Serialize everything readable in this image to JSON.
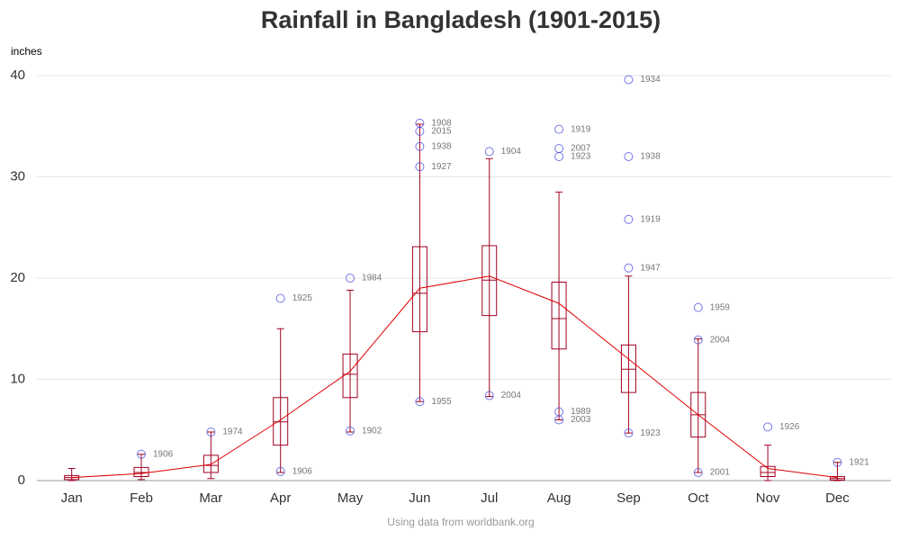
{
  "chart_data": {
    "type": "box",
    "title": "Rainfall in Bangladesh (1901-2015)",
    "y_label": "inches",
    "footnote": "Using data from worldbank.org",
    "categories": [
      "Jan",
      "Feb",
      "Mar",
      "Apr",
      "May",
      "Jun",
      "Jul",
      "Aug",
      "Sep",
      "Oct",
      "Nov",
      "Dec"
    ],
    "ylim": [
      0,
      40
    ],
    "yticks": [
      0,
      10,
      20,
      30,
      40
    ],
    "grid": true,
    "box_color": "#a00020",
    "point_color": "#3a3ae0",
    "line_color": "#e00000",
    "boxes": [
      {
        "min": 0,
        "q1": 0.1,
        "median": 0.3,
        "q3": 0.5,
        "max": 1.2
      },
      {
        "min": 0.1,
        "q1": 0.4,
        "median": 0.8,
        "q3": 1.3,
        "max": 2.6
      },
      {
        "min": 0.2,
        "q1": 0.8,
        "median": 1.5,
        "q3": 2.5,
        "max": 4.8
      },
      {
        "min": 0.8,
        "q1": 3.5,
        "median": 5.8,
        "q3": 8.2,
        "max": 15
      },
      {
        "min": 4.8,
        "q1": 8.2,
        "median": 10.5,
        "q3": 12.5,
        "max": 18.8
      },
      {
        "min": 7.8,
        "q1": 14.7,
        "median": 18.5,
        "q3": 23.1,
        "max": 35.2
      },
      {
        "min": 8.3,
        "q1": 16.3,
        "median": 19.8,
        "q3": 23.2,
        "max": 31.8
      },
      {
        "min": 6,
        "q1": 13,
        "median": 16,
        "q3": 19.6,
        "max": 28.5
      },
      {
        "min": 4.7,
        "q1": 8.7,
        "median": 11,
        "q3": 13.4,
        "max": 20.2
      },
      {
        "min": 0.8,
        "q1": 4.3,
        "median": 6.5,
        "q3": 8.7,
        "max": 14
      },
      {
        "min": 0,
        "q1": 0.4,
        "median": 0.8,
        "q3": 1.4,
        "max": 3.5
      },
      {
        "min": 0,
        "q1": 0.05,
        "median": 0.2,
        "q3": 0.4,
        "max": 1.8
      }
    ],
    "means": [
      0.3,
      0.7,
      1.6,
      6,
      10.8,
      19,
      20.2,
      17.5,
      12,
      6.5,
      1.2,
      0.3
    ],
    "points": [
      {
        "category": "Feb",
        "value": 2.6,
        "label": "1906"
      },
      {
        "category": "Mar",
        "value": 4.8,
        "label": "1974"
      },
      {
        "category": "Apr",
        "value": 18,
        "label": "1925"
      },
      {
        "category": "Apr",
        "value": 0.9,
        "label": "1906"
      },
      {
        "category": "May",
        "value": 20,
        "label": "1984"
      },
      {
        "category": "May",
        "value": 4.9,
        "label": "1902"
      },
      {
        "category": "Jun",
        "value": 35.3,
        "label": "1908"
      },
      {
        "category": "Jun",
        "value": 34.5,
        "label": "2015"
      },
      {
        "category": "Jun",
        "value": 33,
        "label": "1938"
      },
      {
        "category": "Jun",
        "value": 31,
        "label": "1927"
      },
      {
        "category": "Jun",
        "value": 7.8,
        "label": "1955"
      },
      {
        "category": "Jul",
        "value": 32.5,
        "label": "1904"
      },
      {
        "category": "Jul",
        "value": 8.4,
        "label": "2004"
      },
      {
        "category": "Aug",
        "value": 34.7,
        "label": "1919"
      },
      {
        "category": "Aug",
        "value": 32.8,
        "label": "2007"
      },
      {
        "category": "Aug",
        "value": 32,
        "label": "1923"
      },
      {
        "category": "Aug",
        "value": 6.8,
        "label": "1989"
      },
      {
        "category": "Aug",
        "value": 6,
        "label": "2003"
      },
      {
        "category": "Sep",
        "value": 39.6,
        "label": "1934"
      },
      {
        "category": "Sep",
        "value": 32,
        "label": "1938"
      },
      {
        "category": "Sep",
        "value": 25.8,
        "label": "1919"
      },
      {
        "category": "Sep",
        "value": 21,
        "label": "1947"
      },
      {
        "category": "Sep",
        "value": 4.7,
        "label": "1923"
      },
      {
        "category": "Oct",
        "value": 17.1,
        "label": "1959"
      },
      {
        "category": "Oct",
        "value": 13.9,
        "label": "2004"
      },
      {
        "category": "Oct",
        "value": 0.8,
        "label": "2001"
      },
      {
        "category": "Nov",
        "value": 5.3,
        "label": "1926"
      },
      {
        "category": "Dec",
        "value": 1.8,
        "label": "1921"
      }
    ]
  }
}
